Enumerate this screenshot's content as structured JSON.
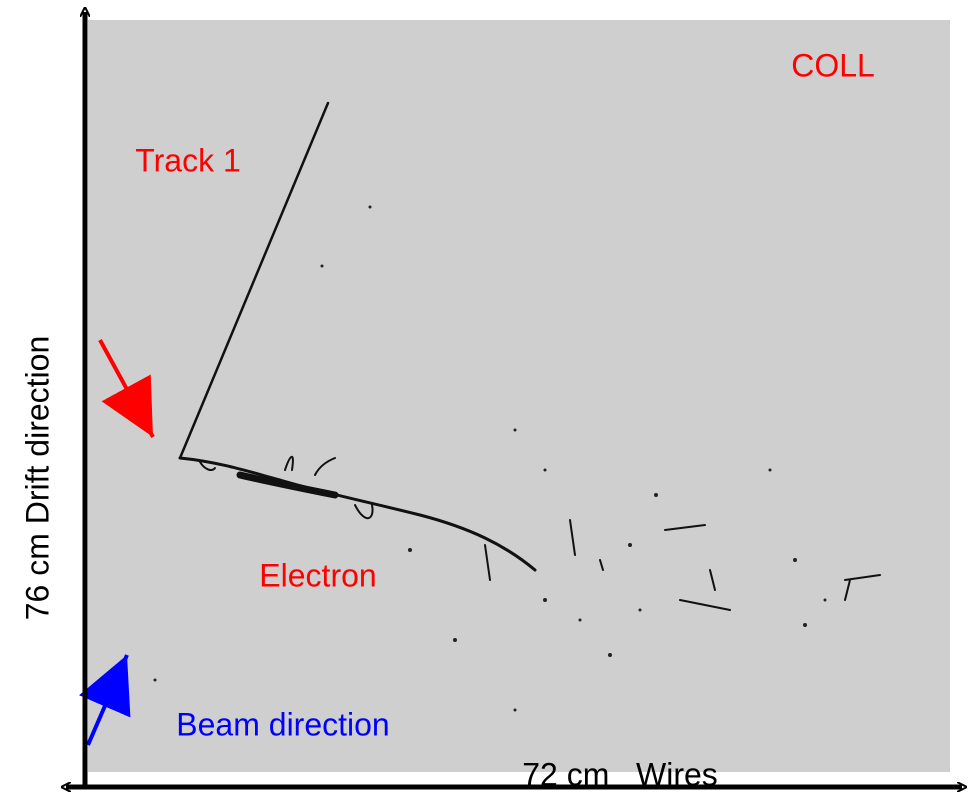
{
  "labels": {
    "plane": "COLL",
    "track": "Track 1",
    "electron": "Electron",
    "beam": "Beam direction",
    "x_axis": "72 cm   Wires",
    "y_axis": "76 cm Drift direction"
  }
}
